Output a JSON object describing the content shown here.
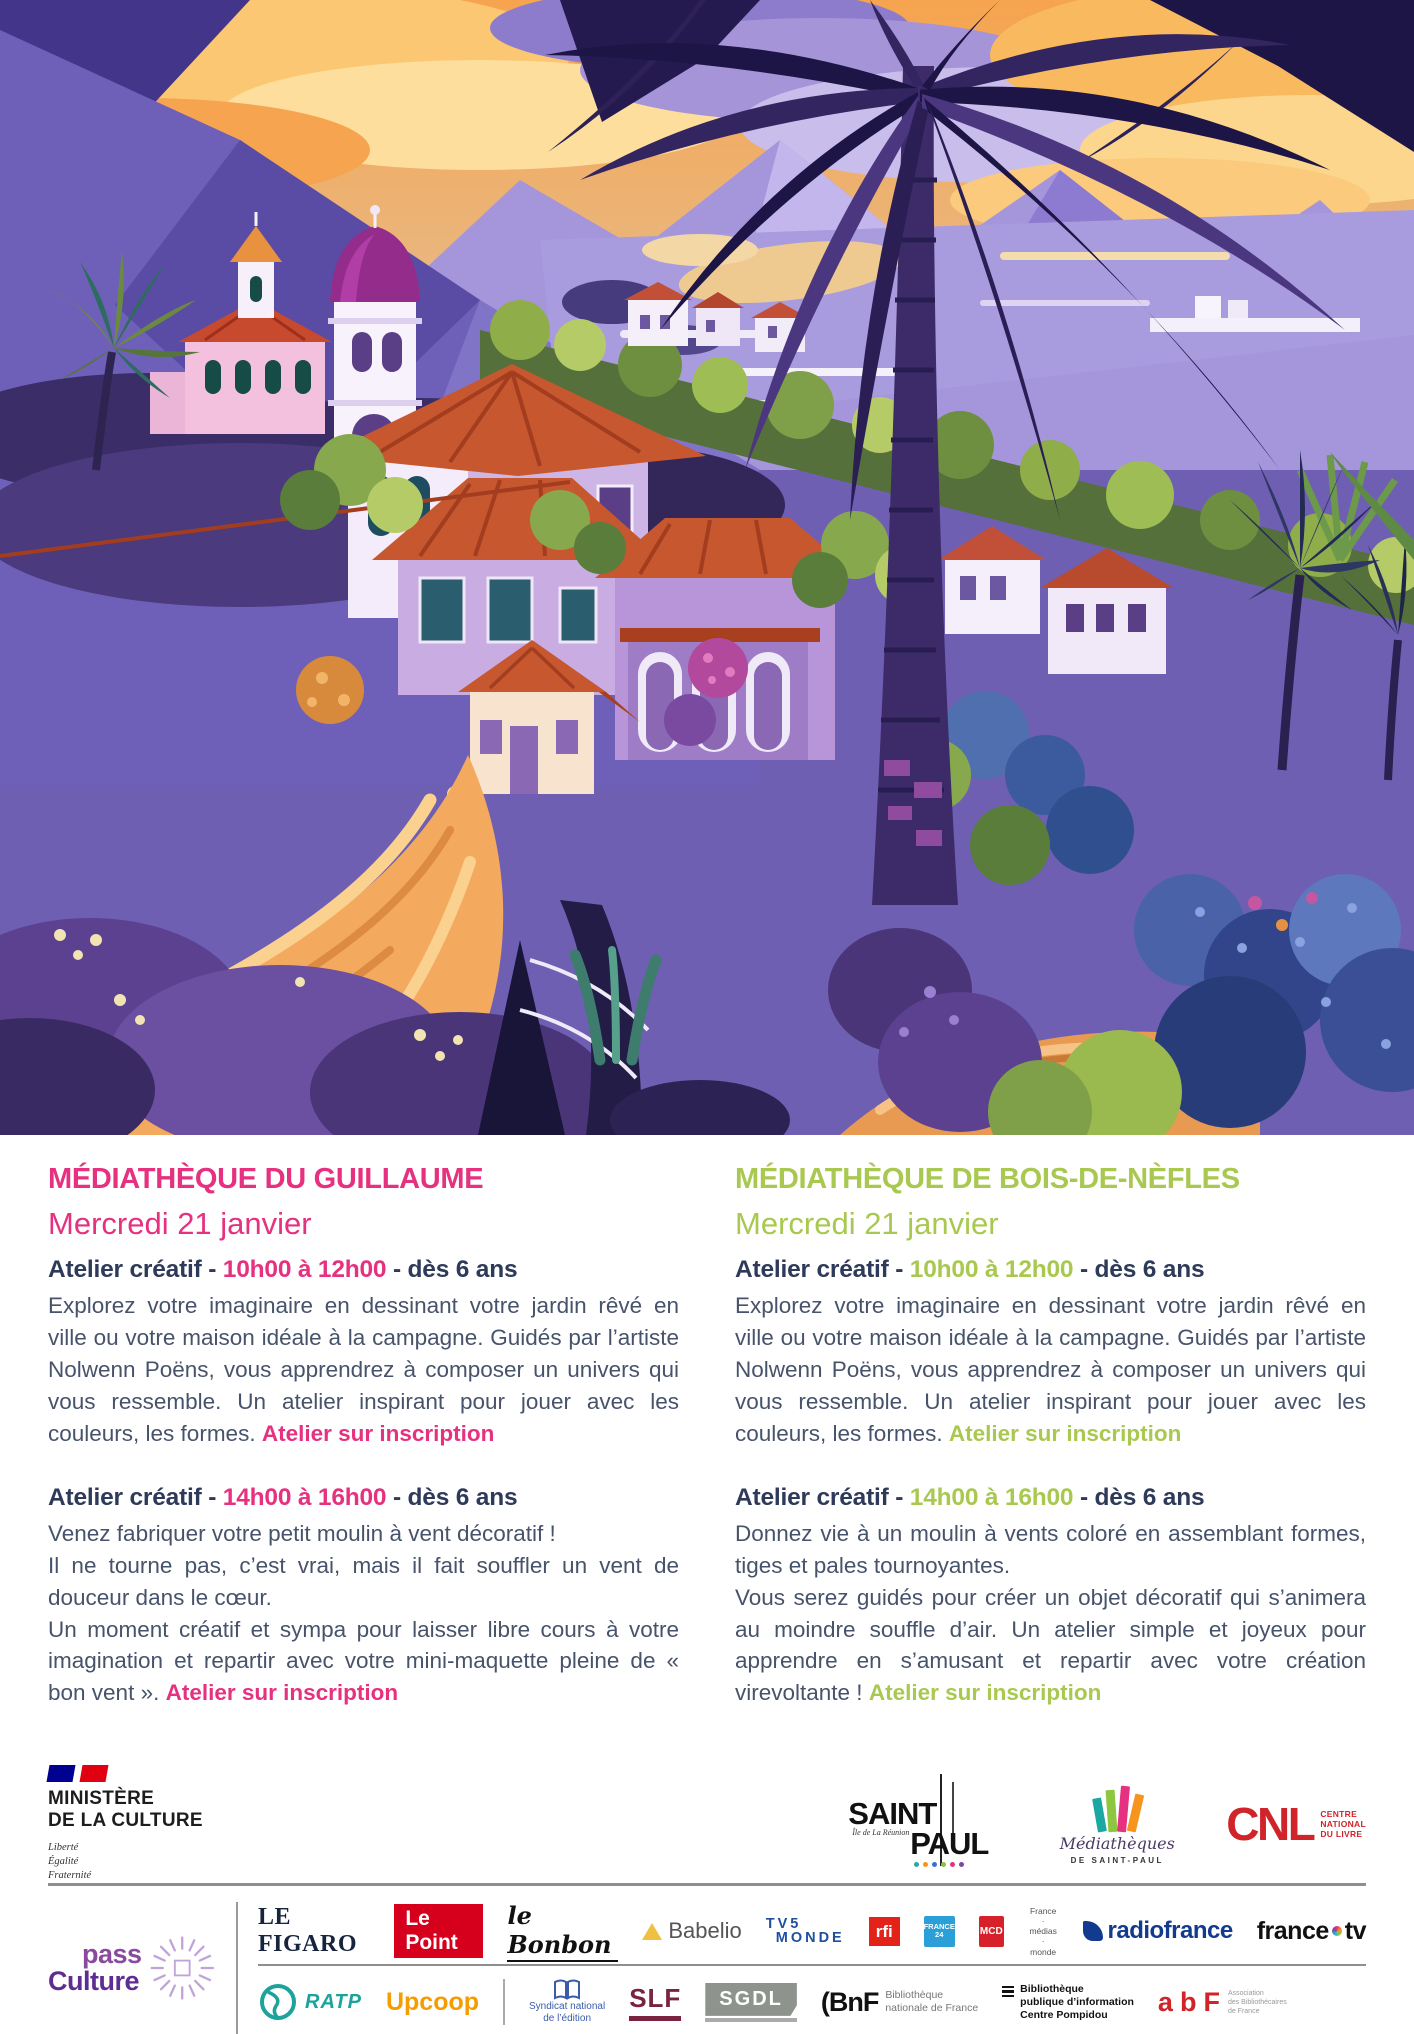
{
  "accents": {
    "pink": "#e5317f",
    "green": "#a9c84f",
    "navy": "#2e3a59"
  },
  "hero": {
    "description": "Illustration : village créole au coucher du soleil, clocher, palmiers et végétation tropicale"
  },
  "columns": [
    {
      "title": "MÉDIATHÈQUE DU GUILLAUME",
      "date": "Mercredi 21 janvier",
      "events": [
        {
          "title_pre": "Atelier créatif - ",
          "title_time": "10h00 à 12h00",
          "title_post": " - dès 6 ans",
          "paragraphs": [
            "Explorez votre imaginaire en dessinant votre jardin rêvé en ville ou votre maison idéale à la campagne. Guidés par l’artiste Nolwenn Poëns, vous apprendrez à composer un univers qui vous ressemble. Un atelier inspirant pour jouer avec les couleurs, les formes."
          ],
          "cta": "Atelier sur inscription"
        },
        {
          "title_pre": "Atelier créatif - ",
          "title_time": "14h00 à 16h00",
          "title_post": " - dès 6 ans",
          "paragraphs": [
            "Venez fabriquer votre petit moulin à vent décoratif !",
            "Il ne tourne pas, c’est vrai, mais il fait souffler un vent de douceur dans le cœur.",
            "Un moment créatif et sympa pour laisser libre cours à votre imagination et repartir avec votre mini-maquette pleine de « bon vent »."
          ],
          "cta": "Atelier sur inscription"
        }
      ]
    },
    {
      "title": "MÉDIATHÈQUE DE BOIS-DE-NÈFLES",
      "date": "Mercredi 21 janvier",
      "events": [
        {
          "title_pre": "Atelier créatif - ",
          "title_time": "10h00 à 12h00",
          "title_post": " - dès 6 ans",
          "paragraphs": [
            "Explorez votre imaginaire en dessinant votre jardin rêvé en ville ou votre maison idéale à la campagne. Guidés par l’artiste Nolwenn Poëns, vous apprendrez à composer un univers qui vous ressemble. Un atelier inspirant pour jouer avec les couleurs, les formes."
          ],
          "cta": "Atelier sur inscription"
        },
        {
          "title_pre": "Atelier créatif - ",
          "title_time": "14h00 à 16h00",
          "title_post": " - dès 6 ans",
          "paragraphs": [
            "Donnez vie à un moulin à vents coloré en assemblant formes, tiges et pales tournoyantes.",
            "Vous serez guidés pour créer un objet décoratif qui s’animera au moindre souffle d’air. Un atelier simple et joyeux pour apprendre en s’amusant et repartir avec votre création virevoltante !"
          ],
          "cta": "Atelier sur inscription"
        }
      ]
    }
  ],
  "footer": {
    "ministere": {
      "name1": "MINISTÈRE",
      "name2": "DE LA CULTURE",
      "motto1": "Liberté",
      "motto2": "Égalité",
      "motto3": "Fraternité"
    },
    "saint_paul": {
      "word1": "SAINT",
      "word2": "PAUL",
      "sub": "Île de La Réunion"
    },
    "mediatheques_sp": {
      "script": "Médiathèques",
      "sub": "DE SAINT-PAUL"
    },
    "cnl": {
      "acronym": "CNL",
      "sub1": "CENTRE",
      "sub2": "NATIONAL",
      "sub3": "DU LIVRE"
    },
    "pass_culture": {
      "word1": "pass",
      "word2": "Culture"
    },
    "row1": {
      "figaro": "LE FIGARO",
      "lepoint": "Le Point",
      "bonbon": "le Bonbon",
      "babelio": "Babelio",
      "tv5_1": "TV5",
      "tv5_2": "MONDE",
      "rfi": "rfi",
      "f24": "FRANCE 24",
      "mcd": "MCD",
      "fmm1": "France",
      "fmm2": "· médias ·",
      "fmm3": "monde",
      "radiofrance": "radiofrance",
      "ftv1": "france",
      "ftv2": "tv"
    },
    "row2": {
      "ratp": "RATP",
      "upcoop": "Upcoop",
      "sne1": "Syndicat national",
      "sne2": "de l’édition",
      "slf": "SLF",
      "sgdl": "SGDL",
      "bnf": "(BnF",
      "bnf_sub1": "Bibliothèque",
      "bnf_sub2": "nationale de France",
      "bpi1": "Bibliothèque",
      "bpi2": "publique d’information",
      "bpi3": "Centre Pompidou",
      "abf_a": "a",
      "abf_b": "b",
      "abf_f": "F",
      "abf_sub1": "Association",
      "abf_sub2": "des Bibliothécaires",
      "abf_sub3": "de France"
    }
  }
}
